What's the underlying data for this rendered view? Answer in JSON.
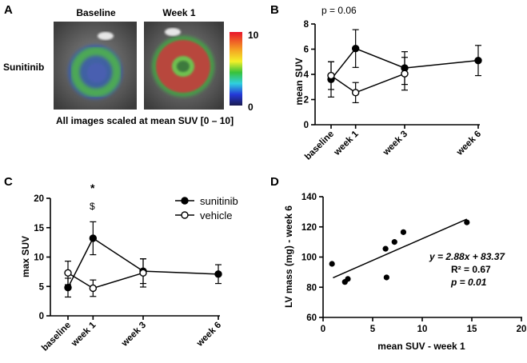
{
  "panels": {
    "A": {
      "letter": "A",
      "row_label": "Sunitinib",
      "col_labels": [
        "Baseline",
        "Week 1"
      ],
      "colorbar_max": "10",
      "colorbar_min": "0",
      "caption": "All images scaled at mean SUV [0 – 10]",
      "colorbar_colors": [
        "#e8142a",
        "#f5a623",
        "#f3f029",
        "#38c23a",
        "#2fd0e0",
        "#2438d8",
        "#1a1a50"
      ]
    },
    "B": {
      "letter": "B",
      "annotation": "p = 0.06"
    },
    "C": {
      "letter": "C",
      "annotation_star": "*",
      "annotation_dollar": "$"
    },
    "D": {
      "letter": "D",
      "eq_line1": "y = 2.88x + 83.37",
      "eq_line2": "R² = 0.67",
      "eq_line3": "p = 0.01"
    }
  },
  "chart_data": [
    {
      "panel": "B",
      "type": "line",
      "ylabel": "mean SUV",
      "xlabel": "",
      "categories": [
        "baseline",
        "week 1",
        "week 3",
        "week 6"
      ],
      "x": [
        0,
        1,
        3,
        6
      ],
      "ylim": [
        0,
        8
      ],
      "yticks": [
        0,
        2,
        4,
        6,
        8
      ],
      "series": [
        {
          "marker": "filled",
          "x": [
            0,
            1,
            3,
            6
          ],
          "values": [
            3.6,
            6.05,
            4.5,
            5.1
          ],
          "error": [
            1.4,
            1.5,
            1.3,
            1.2
          ]
        },
        {
          "marker": "open",
          "x": [
            0,
            1,
            3
          ],
          "values": [
            3.9,
            2.55,
            4.05
          ],
          "error": [
            1.1,
            0.8,
            1.3
          ]
        }
      ]
    },
    {
      "panel": "C",
      "type": "line",
      "ylabel": "max SUV",
      "xlabel": "",
      "categories": [
        "baseline",
        "week 1",
        "week 3",
        "week 6"
      ],
      "x": [
        0,
        1,
        3,
        6
      ],
      "ylim": [
        0,
        20
      ],
      "yticks": [
        0,
        5,
        10,
        15,
        20
      ],
      "legend_position": "top-right",
      "series": [
        {
          "name": "sunitinib",
          "marker": "filled",
          "x": [
            0,
            1,
            3,
            6
          ],
          "values": [
            4.8,
            13.2,
            7.6,
            7.1
          ],
          "error": [
            1.6,
            2.8,
            2.1,
            1.6
          ]
        },
        {
          "name": "vehicle",
          "marker": "open",
          "x": [
            0,
            1,
            3
          ],
          "values": [
            7.3,
            4.7,
            7.3
          ],
          "error": [
            2.0,
            1.4,
            2.4
          ]
        }
      ]
    },
    {
      "panel": "D",
      "type": "scatter",
      "xlabel": "mean SUV - week 1",
      "ylabel": "LV mass (mg) - week 6",
      "xlim": [
        0,
        20
      ],
      "ylim": [
        60,
        140
      ],
      "xticks": [
        0,
        5,
        10,
        15,
        20
      ],
      "yticks": [
        60,
        80,
        100,
        120,
        140
      ],
      "points": [
        {
          "x": 0.9,
          "y": 95.5
        },
        {
          "x": 2.2,
          "y": 83.5
        },
        {
          "x": 2.5,
          "y": 85.5
        },
        {
          "x": 6.3,
          "y": 105.5
        },
        {
          "x": 6.4,
          "y": 86.5
        },
        {
          "x": 7.2,
          "y": 110.0
        },
        {
          "x": 8.1,
          "y": 116.5
        },
        {
          "x": 14.5,
          "y": 123.0
        }
      ],
      "fit": {
        "slope": 2.88,
        "intercept": 83.37,
        "x_range": [
          1.0,
          14.5
        ]
      }
    }
  ]
}
